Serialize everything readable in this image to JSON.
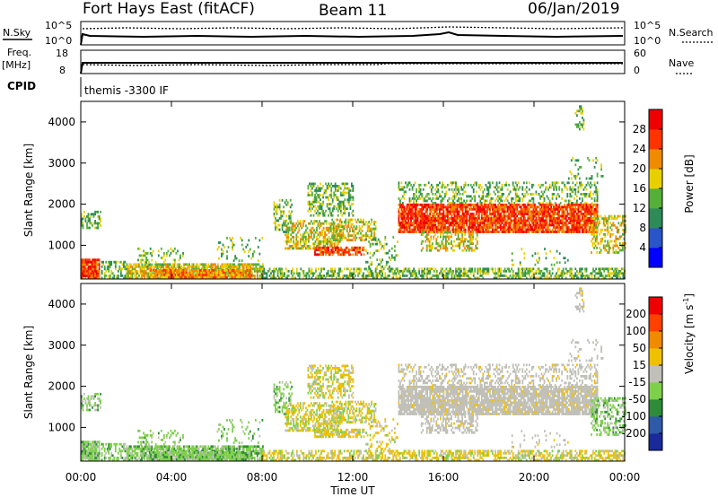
{
  "header": {
    "station": "Fort Hays East (fitACF)",
    "beam": "Beam 11",
    "date": "06/Jan/2019"
  },
  "top_panels": {
    "nsky_label": "N.Sky",
    "nsearch_label": "N.Search",
    "nsky_ticks": [
      "10^5",
      "10^0"
    ],
    "nsearch_ticks": [
      "10^5",
      "10^0"
    ],
    "freq_label": "Freq.",
    "freq_unit": "[MHz]",
    "freq_ticks": [
      "18",
      "8"
    ],
    "nave_label": "Nave",
    "nave_ticks": [
      "60",
      "0"
    ],
    "cpid_label": "CPID",
    "cpid_value": "themis -3300 IF"
  },
  "chart_data": [
    {
      "type": "heatmap",
      "name": "power",
      "ylabel": "Slant Range [km]",
      "xlabel": "",
      "x_range_hours": [
        0,
        24
      ],
      "ylim": [
        180,
        4500
      ],
      "y_ticks": [
        "4000",
        "3000",
        "2000",
        "1000"
      ],
      "colorbar_label": "Power [dB]",
      "colorbar_ticks": [
        "28",
        "24",
        "20",
        "16",
        "12",
        "8",
        "4"
      ],
      "colorbar_colors": [
        "#0000ff",
        "#2a55c8",
        "#2e8b57",
        "#55b03a",
        "#e8d000",
        "#f08a00",
        "#ff3300",
        "#ee0000"
      ],
      "grid": false
    },
    {
      "type": "heatmap",
      "name": "velocity",
      "ylabel": "Slant Range [km]",
      "xlabel": "Time UT",
      "x_ticks": [
        "00:00",
        "04:00",
        "08:00",
        "12:00",
        "16:00",
        "20:00",
        "00:00"
      ],
      "x_range_hours": [
        0,
        24
      ],
      "ylim": [
        180,
        4500
      ],
      "y_ticks": [
        "4000",
        "3000",
        "2000",
        "1000"
      ],
      "colorbar_label": "Velocity [m s",
      "colorbar_label_sup": "-1",
      "colorbar_ticks": [
        "200",
        "100",
        "50",
        "15",
        "-15",
        "-50",
        "-100",
        "-200"
      ],
      "colorbar_colors": [
        "#1a2a9a",
        "#2e5aa8",
        "#2e8b3a",
        "#7ed04a",
        "#c0c0b8",
        "#f0c000",
        "#f08a00",
        "#ff4000",
        "#ee0000"
      ],
      "grid": false
    }
  ]
}
